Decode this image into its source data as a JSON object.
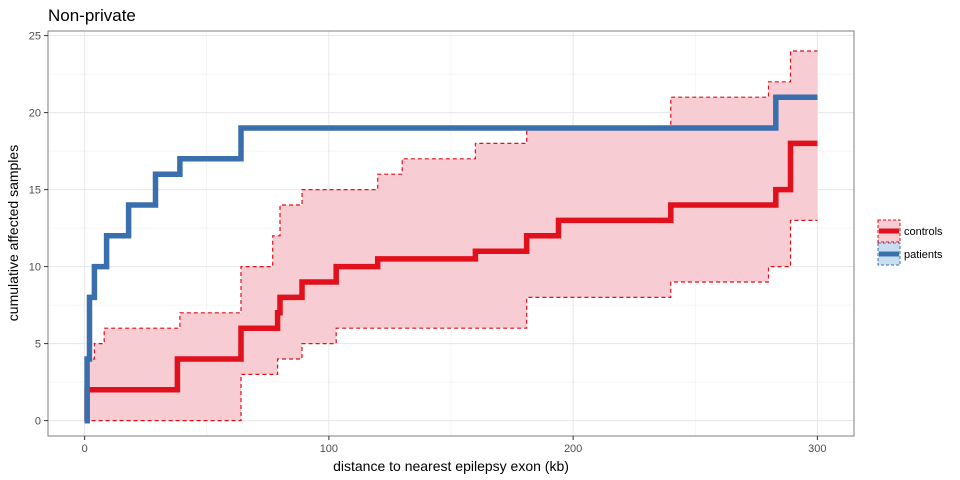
{
  "chart_data": {
    "type": "line",
    "title": "Non-private",
    "xlabel": "distance to nearest epilepsy exon (kb)",
    "ylabel": "cumulative affected samples",
    "xlim": [
      -15,
      315
    ],
    "ylim": [
      -1,
      25.3
    ],
    "x_ticks": [
      0,
      100,
      200,
      300
    ],
    "y_ticks": [
      0,
      5,
      10,
      15,
      20,
      25
    ],
    "grid": true,
    "legend_position": "right",
    "series": [
      {
        "name": "patients",
        "color": "#3a6fad",
        "points": [
          [
            0,
            0
          ],
          [
            1,
            4
          ],
          [
            2,
            8
          ],
          [
            4,
            10
          ],
          [
            9,
            12
          ],
          [
            18,
            14
          ],
          [
            29,
            16
          ],
          [
            39,
            17
          ],
          [
            64,
            19
          ],
          [
            283,
            21
          ],
          [
            300,
            21
          ]
        ]
      },
      {
        "name": "controls",
        "color": "#e0101c",
        "band_color": "#f8ccd3",
        "band_line_color": "#e0101c",
        "points": [
          [
            0,
            0
          ],
          [
            1,
            2
          ],
          [
            38,
            4
          ],
          [
            64,
            6
          ],
          [
            79,
            7
          ],
          [
            80,
            8
          ],
          [
            89,
            9
          ],
          [
            103,
            10
          ],
          [
            120,
            10.5
          ],
          [
            160,
            11
          ],
          [
            181,
            12
          ],
          [
            194,
            13
          ],
          [
            240,
            14
          ],
          [
            283,
            15
          ],
          [
            289,
            18
          ],
          [
            300,
            18
          ]
        ],
        "upper": [
          [
            0,
            0
          ],
          [
            1,
            4
          ],
          [
            4,
            5
          ],
          [
            8,
            6
          ],
          [
            39,
            7
          ],
          [
            64,
            10
          ],
          [
            77,
            12
          ],
          [
            80,
            14
          ],
          [
            89,
            15
          ],
          [
            120,
            16
          ],
          [
            130,
            17
          ],
          [
            160,
            18
          ],
          [
            181,
            19
          ],
          [
            240,
            21
          ],
          [
            280,
            22
          ],
          [
            289,
            24
          ],
          [
            300,
            24
          ]
        ],
        "lower": [
          [
            0,
            0
          ],
          [
            2,
            0
          ],
          [
            64,
            3
          ],
          [
            79,
            4
          ],
          [
            89,
            5
          ],
          [
            103,
            6
          ],
          [
            181,
            8
          ],
          [
            240,
            9
          ],
          [
            280,
            10
          ],
          [
            289,
            13
          ],
          [
            300,
            13
          ]
        ]
      }
    ],
    "legend": [
      {
        "label": "controls",
        "color": "#e0101c",
        "fill": "#f8ccd3"
      },
      {
        "label": "patients",
        "color": "#3a6fad",
        "fill": "#c9ddf0"
      }
    ]
  }
}
